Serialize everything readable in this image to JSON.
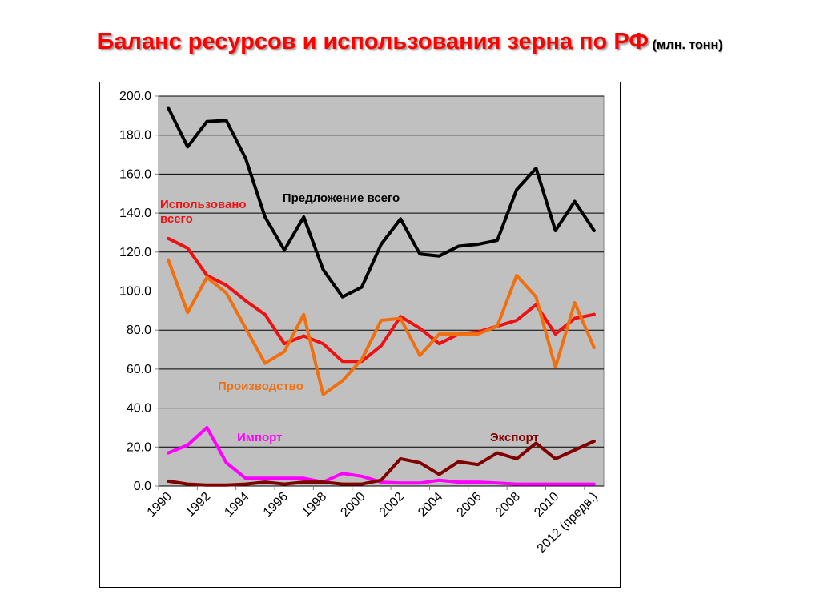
{
  "title": {
    "main": "Баланс ресурсов и использования зерна по РФ",
    "unit": "(млн. тонн)"
  },
  "chart_data": {
    "type": "line",
    "ylim": [
      0,
      200
    ],
    "yticks": [
      "0.0",
      "20.0",
      "40.0",
      "60.0",
      "80.0",
      "100.0",
      "120.0",
      "140.0",
      "160.0",
      "180.0",
      "200.0"
    ],
    "xticks": [
      "1990",
      "1992",
      "1994",
      "1996",
      "1998",
      "2000",
      "2002",
      "2004",
      "2006",
      "2008",
      "2010",
      "2012 (предв.)"
    ],
    "grid": true,
    "plot_background": "#c0c0c0",
    "x": [
      "1990",
      "1991",
      "1992",
      "1993",
      "1994",
      "1995",
      "1996",
      "1997",
      "1998",
      "1999",
      "2000",
      "2001",
      "2002",
      "2003",
      "2004",
      "2005",
      "2006",
      "2007",
      "2008",
      "2009",
      "2010",
      "2011",
      "2012 (предв.)"
    ],
    "series": [
      {
        "name": "Предложение всего",
        "color": "#000000",
        "values": [
          194,
          174,
          187,
          187.5,
          168,
          138,
          121,
          138,
          111,
          97,
          102,
          124,
          137,
          119,
          118,
          123,
          124,
          126,
          152,
          163,
          131,
          146,
          131
        ]
      },
      {
        "name": "Использовано всего",
        "color": "#ee1111",
        "values": [
          127,
          122,
          108,
          103,
          95,
          88,
          73,
          77,
          73,
          64,
          64,
          72,
          87,
          81,
          73,
          78,
          79,
          82,
          85,
          93,
          78,
          86,
          88
        ]
      },
      {
        "name": "Производство",
        "color": "#f07010",
        "values": [
          116,
          89,
          107,
          99,
          81,
          63,
          69,
          88,
          47,
          54,
          65,
          85,
          86,
          67,
          78,
          78,
          78,
          82,
          108,
          97,
          61,
          94,
          71
        ]
      },
      {
        "name": "Импорт",
        "color": "#ff00ff",
        "values": [
          17,
          21,
          30,
          12,
          4,
          4,
          4,
          4,
          2,
          6.5,
          5,
          2,
          1.5,
          1.5,
          3,
          2,
          2,
          1.5,
          1,
          1,
          1,
          1,
          1
        ]
      },
      {
        "name": "Экспорт",
        "color": "#800000",
        "values": [
          2.5,
          1,
          0.5,
          0.5,
          1,
          2,
          1,
          2,
          2,
          1,
          1,
          3,
          14,
          12,
          6,
          12.5,
          11,
          17,
          14,
          22,
          14,
          18.5,
          23
        ]
      }
    ]
  }
}
